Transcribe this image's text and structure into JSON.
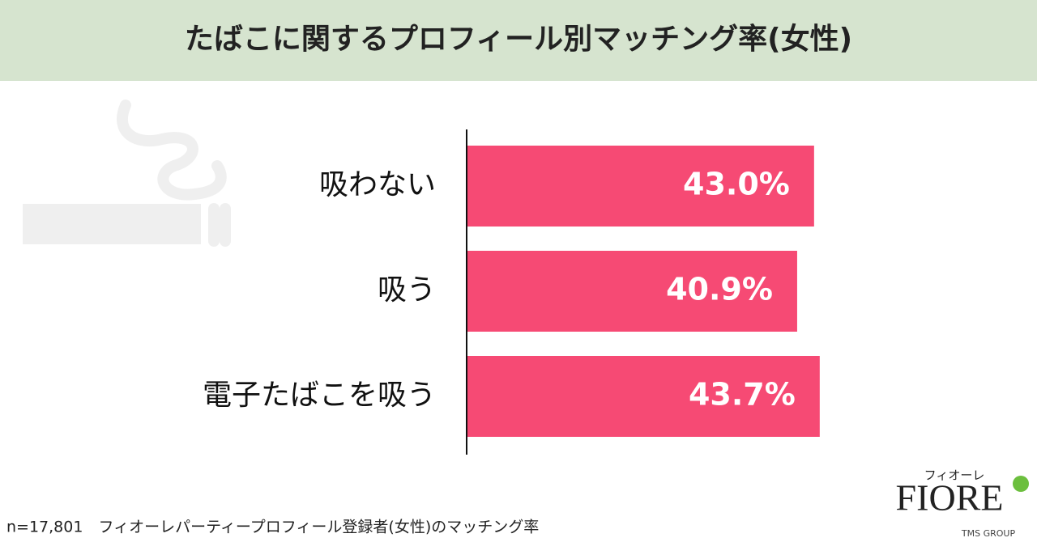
{
  "chart_data": {
    "type": "bar",
    "orientation": "horizontal",
    "title": "たばこに関するプロフィール別マッチング率(女性)",
    "categories": [
      "吸わない",
      "吸う",
      "電子たばこを吸う"
    ],
    "values": [
      43.0,
      40.9,
      43.7
    ],
    "value_labels": [
      "43.0%",
      "40.9%",
      "43.7%"
    ],
    "color": "#f64a74",
    "footnote": "n=17,801　フィオーレパーティープロフィール登録者(女性)のマッチング率"
  },
  "logo": {
    "kana": "フィオーレ",
    "name": "FIORE",
    "group": "TMS GROUP"
  }
}
